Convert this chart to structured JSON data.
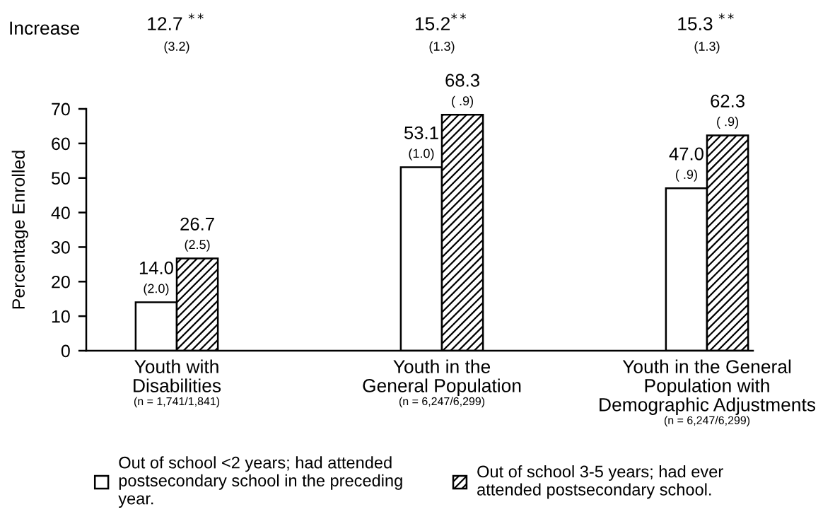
{
  "chart_data": {
    "type": "bar",
    "categories": [
      "Youth with\nDisabilities",
      "Youth in the\nGeneral Population",
      "Youth in the General\nPopulation with\nDemographic Adjustments"
    ],
    "series": [
      {
        "name": "Out of school <2 years; had attended\npostsecondary school in the preceding\nyear.",
        "color": "#000000",
        "values": [
          14.0,
          53.1,
          47.0
        ],
        "value_labels": [
          "14.0\n(2.0)",
          "53.1\n(1.0)",
          "47.0\n( .9)"
        ]
      },
      {
        "name": "Out of school 3-5 years; had ever\nattended postsecondary school.",
        "color": "#000000",
        "values": [
          26.7,
          68.3,
          62.3
        ],
        "value_labels": [
          "26.7\n(2.5)",
          "68.3\n( .9)",
          "62.3\n( .9)"
        ]
      }
    ],
    "ylabel": "Percentage Enrolled",
    "ylim": [
      0,
      70
    ],
    "yticks": [
      0,
      10,
      20,
      30,
      40,
      50,
      60,
      70
    ],
    "legend": "bottom",
    "annotations": [
      "Increase",
      "12.7 $^{**}$\n(3.2)",
      "15.2$^{**}$\n(1.3)",
      "15.3 $^{**}$\n(1.3)",
      "(n = 1,741/1,841)",
      "(n = 6,247/6,299)",
      "(n = 6,247/6,299)"
    ]
  }
}
